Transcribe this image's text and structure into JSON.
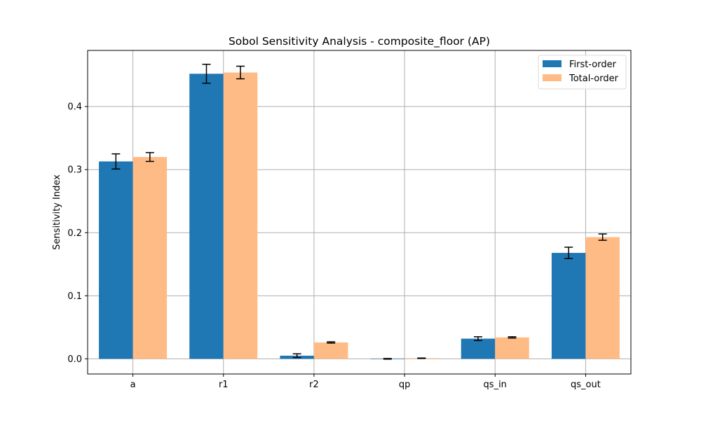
{
  "chart_data": {
    "type": "bar",
    "title": "Sobol Sensitivity Analysis - composite_floor (AP)",
    "xlabel": "",
    "ylabel": "Sensitivity Index",
    "categories": [
      "a",
      "r1",
      "r2",
      "qp",
      "qs_in",
      "qs_out"
    ],
    "ylim": [
      -0.024,
      0.489
    ],
    "yticks": [
      "0.0",
      "0.1",
      "0.2",
      "0.3",
      "0.4"
    ],
    "ytick_values": [
      0.0,
      0.1,
      0.2,
      0.3,
      0.4
    ],
    "grid": true,
    "legend_position": "top-right",
    "series": [
      {
        "name": "First-order",
        "color": "#1f77b4",
        "values": [
          0.313,
          0.452,
          0.005,
          0.0,
          0.032,
          0.168
        ],
        "errors": [
          0.012,
          0.015,
          0.003,
          0.0005,
          0.003,
          0.009
        ]
      },
      {
        "name": "Total-order",
        "color": "#ffbb85",
        "values": [
          0.32,
          0.454,
          0.026,
          0.001,
          0.034,
          0.193
        ],
        "errors": [
          0.007,
          0.01,
          0.001,
          0.0003,
          0.001,
          0.005
        ]
      }
    ]
  }
}
